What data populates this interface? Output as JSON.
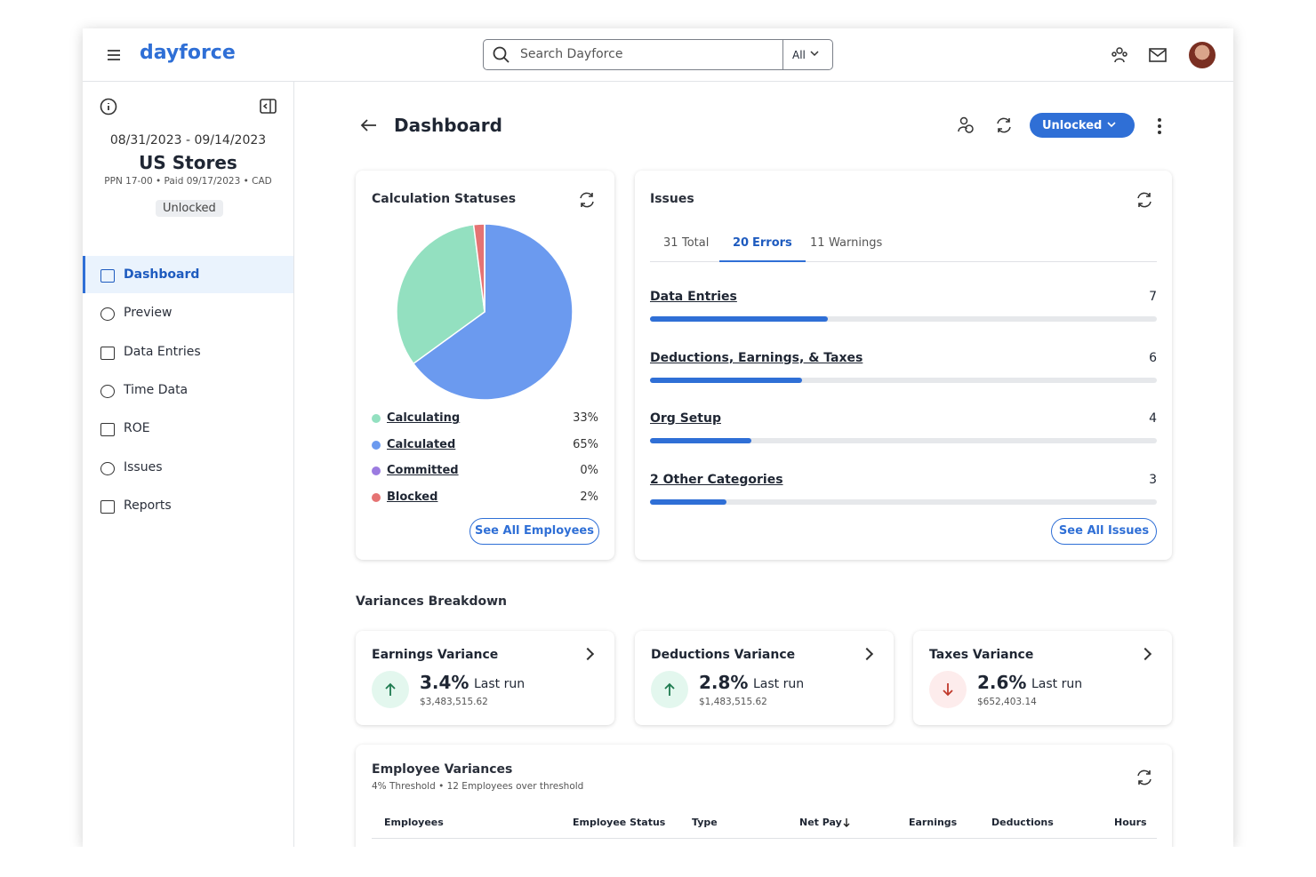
{
  "header": {
    "logo": "dayforce",
    "search_placeholder": "Search Dayforce",
    "search_scope": "All"
  },
  "sidebar": {
    "date_range": "08/31/2023 - 09/14/2023",
    "org": "US Stores",
    "meta": "PPN 17-00 • Paid 09/17/2023 • CAD",
    "status": "Unlocked",
    "nav": [
      "Dashboard",
      "Preview",
      "Data Entries",
      "Time Data",
      "ROE",
      "Issues",
      "Reports"
    ],
    "active_nav": 0
  },
  "page": {
    "title": "Dashboard",
    "status_button": "Unlocked"
  },
  "calculation_statuses": {
    "title": "Calculation Statuses",
    "chart_data": {
      "type": "pie",
      "categories": [
        "Calculating",
        "Calculated",
        "Committed",
        "Blocked"
      ],
      "values": [
        33,
        65,
        0,
        2
      ],
      "value_labels": [
        "33%",
        "65%",
        "0%",
        "2%"
      ],
      "colors": [
        "#93e0c0",
        "#6b9aef",
        "#9b7be0",
        "#e57373"
      ]
    },
    "button": "See All Employees"
  },
  "issues": {
    "title": "Issues",
    "tabs": [
      {
        "count": 31,
        "label": "Total"
      },
      {
        "count": 20,
        "label": "Errors"
      },
      {
        "count": 11,
        "label": "Warnings"
      }
    ],
    "active_tab": 1,
    "rows": [
      {
        "label": "Data Entries",
        "value": 7
      },
      {
        "label": "Deductions, Earnings, & Taxes",
        "value": 6
      },
      {
        "label": "Org Setup",
        "value": 4
      },
      {
        "label": "2 Other Categories",
        "value": 3
      }
    ],
    "button": "See All Issues"
  },
  "variances": {
    "title": "Variances Breakdown",
    "cards": [
      {
        "title": "Earnings Variance",
        "change": "3.4%",
        "suffix": "Last run",
        "amount": "$3,483,515.62",
        "direction": "up"
      },
      {
        "title": "Deductions Variance",
        "change": "2.8%",
        "suffix": "Last run",
        "amount": "$1,483,515.62",
        "direction": "up"
      },
      {
        "title": "Taxes Variance",
        "change": "2.6%",
        "suffix": "Last run",
        "amount": "$652,403.14",
        "direction": "down"
      }
    ]
  },
  "employee_variances": {
    "title": "Employee Variances",
    "subtitle": "4% Threshold • 12 Employees over threshold",
    "columns": [
      "Employees",
      "Employee Status",
      "Type",
      "Net Pay",
      "Earnings",
      "Deductions",
      "Hours"
    ]
  }
}
